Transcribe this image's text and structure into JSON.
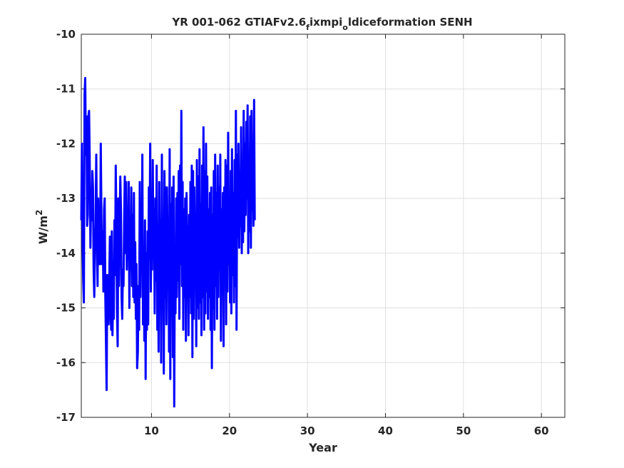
{
  "chart_data": {
    "type": "line",
    "title": "YR 001-062 GTIAFv2.6",
    "title_sub1": "f",
    "title_mid": "ixmpi",
    "title_sub2": "o",
    "title_end": "ldiceformation SENH",
    "xlabel": "Year",
    "ylabel": "W/m",
    "ylabel_sup": "2",
    "xlim": [
      1,
      63
    ],
    "ylim": [
      -17,
      -10
    ],
    "xticks": [
      10,
      20,
      30,
      40,
      50,
      60
    ],
    "yticks": [
      -10,
      -11,
      -12,
      -13,
      -14,
      -15,
      -16,
      -17
    ],
    "xtick_labels": [
      "10",
      "20",
      "30",
      "40",
      "50",
      "60"
    ],
    "ytick_labels": [
      "-10",
      "-11",
      "-12",
      "-13",
      "-14",
      "-15",
      "-16",
      "-17"
    ],
    "grid": true,
    "line_color": "#0000ff",
    "series": [
      {
        "x_start": 1.0,
        "x_step": 0.0833,
        "values": [
          -13.4,
          -12.0,
          -13.8,
          -14.5,
          -14.9,
          -11.1,
          -10.8,
          -12.2,
          -11.5,
          -13.5,
          -13.3,
          -11.5,
          -11.4,
          -12.3,
          -13.9,
          -13.0,
          -13.4,
          -12.5,
          -12.8,
          -14.3,
          -14.8,
          -14.0,
          -13.5,
          -12.2,
          -13.7,
          -14.6,
          -13.0,
          -14.2,
          -13.6,
          -14.2,
          -12.0,
          -13.3,
          -14.2,
          -13.6,
          -14.7,
          -13.2,
          -13.0,
          -14.8,
          -15.6,
          -16.5,
          -14.4,
          -15.1,
          -15.3,
          -14.5,
          -13.7,
          -15.0,
          -15.4,
          -13.6,
          -15.5,
          -14.7,
          -15.2,
          -13.4,
          -14.4,
          -12.4,
          -13.5,
          -15.1,
          -15.7,
          -13.0,
          -14.6,
          -13.6,
          -12.6,
          -13.2,
          -14.8,
          -15.2,
          -14.3,
          -14.6,
          -13.4,
          -12.6,
          -14.0,
          -12.7,
          -14.3,
          -13.4,
          -14.1,
          -12.7,
          -15.0,
          -13.6,
          -14.3,
          -12.8,
          -14.6,
          -13.3,
          -14.8,
          -12.9,
          -14.9,
          -13.8,
          -15.2,
          -14.2,
          -16.1,
          -15.8,
          -14.6,
          -15.4,
          -12.7,
          -14.8,
          -13.5,
          -14.1,
          -12.2,
          -15.3,
          -14.0,
          -15.6,
          -13.4,
          -16.3,
          -14.0,
          -15.4,
          -13.6,
          -15.3,
          -12.8,
          -14.1,
          -12.0,
          -14.7,
          -13.5,
          -14.3,
          -12.3,
          -14.0,
          -13.2,
          -15.1,
          -13.0,
          -14.5,
          -12.4,
          -15.4,
          -13.5,
          -15.8,
          -12.7,
          -14.6,
          -13.4,
          -16.0,
          -12.2,
          -14.9,
          -13.6,
          -16.2,
          -12.5,
          -14.8,
          -12.8,
          -15.3,
          -12.8,
          -14.3,
          -13.5,
          -15.8,
          -12.1,
          -16.3,
          -13.1,
          -14.6,
          -12.8,
          -15.9,
          -12.6,
          -16.8,
          -13.9,
          -15.1,
          -13.0,
          -14.8,
          -12.9,
          -14.5,
          -12.5,
          -15.2,
          -12.4,
          -14.2,
          -11.4,
          -14.6,
          -12.7,
          -15.4,
          -13.2,
          -14.8,
          -13.0,
          -15.6,
          -12.9,
          -14.1,
          -13.5,
          -15.5,
          -13.3,
          -14.8,
          -12.7,
          -15.1,
          -12.4,
          -15.9,
          -12.5,
          -15.2,
          -12.8,
          -14.1,
          -13.3,
          -15.7,
          -12.3,
          -15.0,
          -12.6,
          -15.2,
          -12.1,
          -14.9,
          -13.1,
          -15.5,
          -12.4,
          -14.8,
          -11.7,
          -15.4,
          -12.5,
          -15.1,
          -12.0,
          -14.7,
          -12.6,
          -15.2,
          -13.2,
          -14.8,
          -12.9,
          -15.4,
          -12.8,
          -16.1,
          -13.3,
          -15.0,
          -12.5,
          -15.4,
          -12.2,
          -14.6,
          -12.9,
          -15.2,
          -12.4,
          -14.8,
          -12.8,
          -14.3,
          -12.2,
          -15.6,
          -13.2,
          -14.5,
          -12.9,
          -15.7,
          -12.8,
          -14.5,
          -12.3,
          -15.3,
          -12.4,
          -14.7,
          -11.8,
          -14.2,
          -13.0,
          -14.9,
          -12.5,
          -15.1,
          -12.1,
          -14.4,
          -12.9,
          -14.9,
          -12.3,
          -14.6,
          -11.4,
          -15.4,
          -12.2,
          -13.7,
          -12.0,
          -13.9,
          -12.6,
          -13.5,
          -11.7,
          -14.0,
          -12.3,
          -13.8,
          -11.4,
          -13.6,
          -12.0,
          -13.3,
          -11.6,
          -13.0,
          -11.3,
          -14.0,
          -12.2,
          -13.6,
          -11.5,
          -13.9,
          -11.4,
          -13.2,
          -12.5,
          -13.5,
          -11.2,
          -13.4
        ]
      }
    ]
  }
}
